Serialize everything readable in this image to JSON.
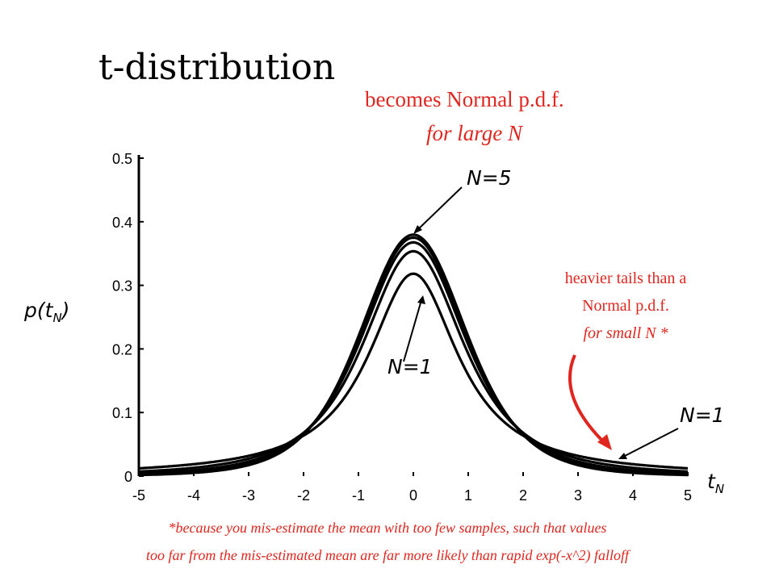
{
  "title": "t-distribution",
  "notes": {
    "normal_line1": "becomes Normal p.d.f.",
    "normal_line2": "for large N",
    "tail_line1": "heavier tails than a",
    "tail_line2": "Normal p.d.f.",
    "tail_line3": "for small N *"
  },
  "labels": {
    "y_main": "p(t",
    "y_sub": "N",
    "y_close": ")",
    "x_main": "t",
    "x_sub": "N",
    "n5": "N=5",
    "n1_center": "N=1",
    "n1_tail": "N=1"
  },
  "footnote": {
    "line1": "*because you mis-estimate the mean with too few samples, such that values",
    "line2": "too far from the mis-estimated mean are far more likely than rapid exp(-x^2) falloff"
  },
  "colors": {
    "accent": "#e0261f",
    "ink": "#000000"
  },
  "chart_data": {
    "type": "line",
    "xlim": [
      -5,
      5
    ],
    "ylim": [
      0,
      0.5
    ],
    "xticks": [
      -5,
      -4,
      -3,
      -2,
      -1,
      0,
      1,
      2,
      3,
      4,
      5
    ],
    "yticks": [
      0,
      0.1,
      0.2,
      0.3,
      0.4,
      0.5
    ],
    "ytick_labels": [
      "0",
      "0.1",
      "0.2",
      "0.3",
      "0.4",
      "0.5"
    ],
    "grid": false,
    "series": [
      {
        "nu": 1,
        "x": [
          -5,
          -4,
          -3,
          -2,
          -1,
          -0.5,
          0,
          0.5,
          1,
          2,
          3,
          4,
          5
        ],
        "values": [
          0.012,
          0.019,
          0.032,
          0.064,
          0.159,
          0.255,
          0.318,
          0.255,
          0.159,
          0.064,
          0.032,
          0.019,
          0.012
        ]
      },
      {
        "nu": 2,
        "x": [
          -5,
          -4,
          -3,
          -2,
          -1,
          -0.5,
          0,
          0.5,
          1,
          2,
          3,
          4,
          5
        ],
        "values": [
          0.007,
          0.013,
          0.027,
          0.068,
          0.192,
          0.299,
          0.354,
          0.299,
          0.192,
          0.068,
          0.027,
          0.013,
          0.007
        ]
      },
      {
        "nu": 3,
        "x": [
          -5,
          -4,
          -3,
          -2,
          -1,
          -0.5,
          0,
          0.5,
          1,
          2,
          3,
          4,
          5
        ],
        "values": [
          0.004,
          0.009,
          0.023,
          0.068,
          0.207,
          0.317,
          0.368,
          0.317,
          0.207,
          0.068,
          0.023,
          0.009,
          0.004
        ]
      },
      {
        "nu": 4,
        "x": [
          -5,
          -4,
          -3,
          -2,
          -1,
          -0.5,
          0,
          0.5,
          1,
          2,
          3,
          4,
          5
        ],
        "values": [
          0.002,
          0.007,
          0.02,
          0.066,
          0.215,
          0.326,
          0.375,
          0.326,
          0.215,
          0.066,
          0.02,
          0.007,
          0.002
        ]
      },
      {
        "nu": 5,
        "x": [
          -5,
          -4,
          -3,
          -2,
          -1,
          -0.5,
          0,
          0.5,
          1,
          2,
          3,
          4,
          5
        ],
        "values": [
          0.002,
          0.005,
          0.017,
          0.065,
          0.22,
          0.332,
          0.38,
          0.332,
          0.22,
          0.065,
          0.017,
          0.005,
          0.002
        ]
      }
    ]
  }
}
